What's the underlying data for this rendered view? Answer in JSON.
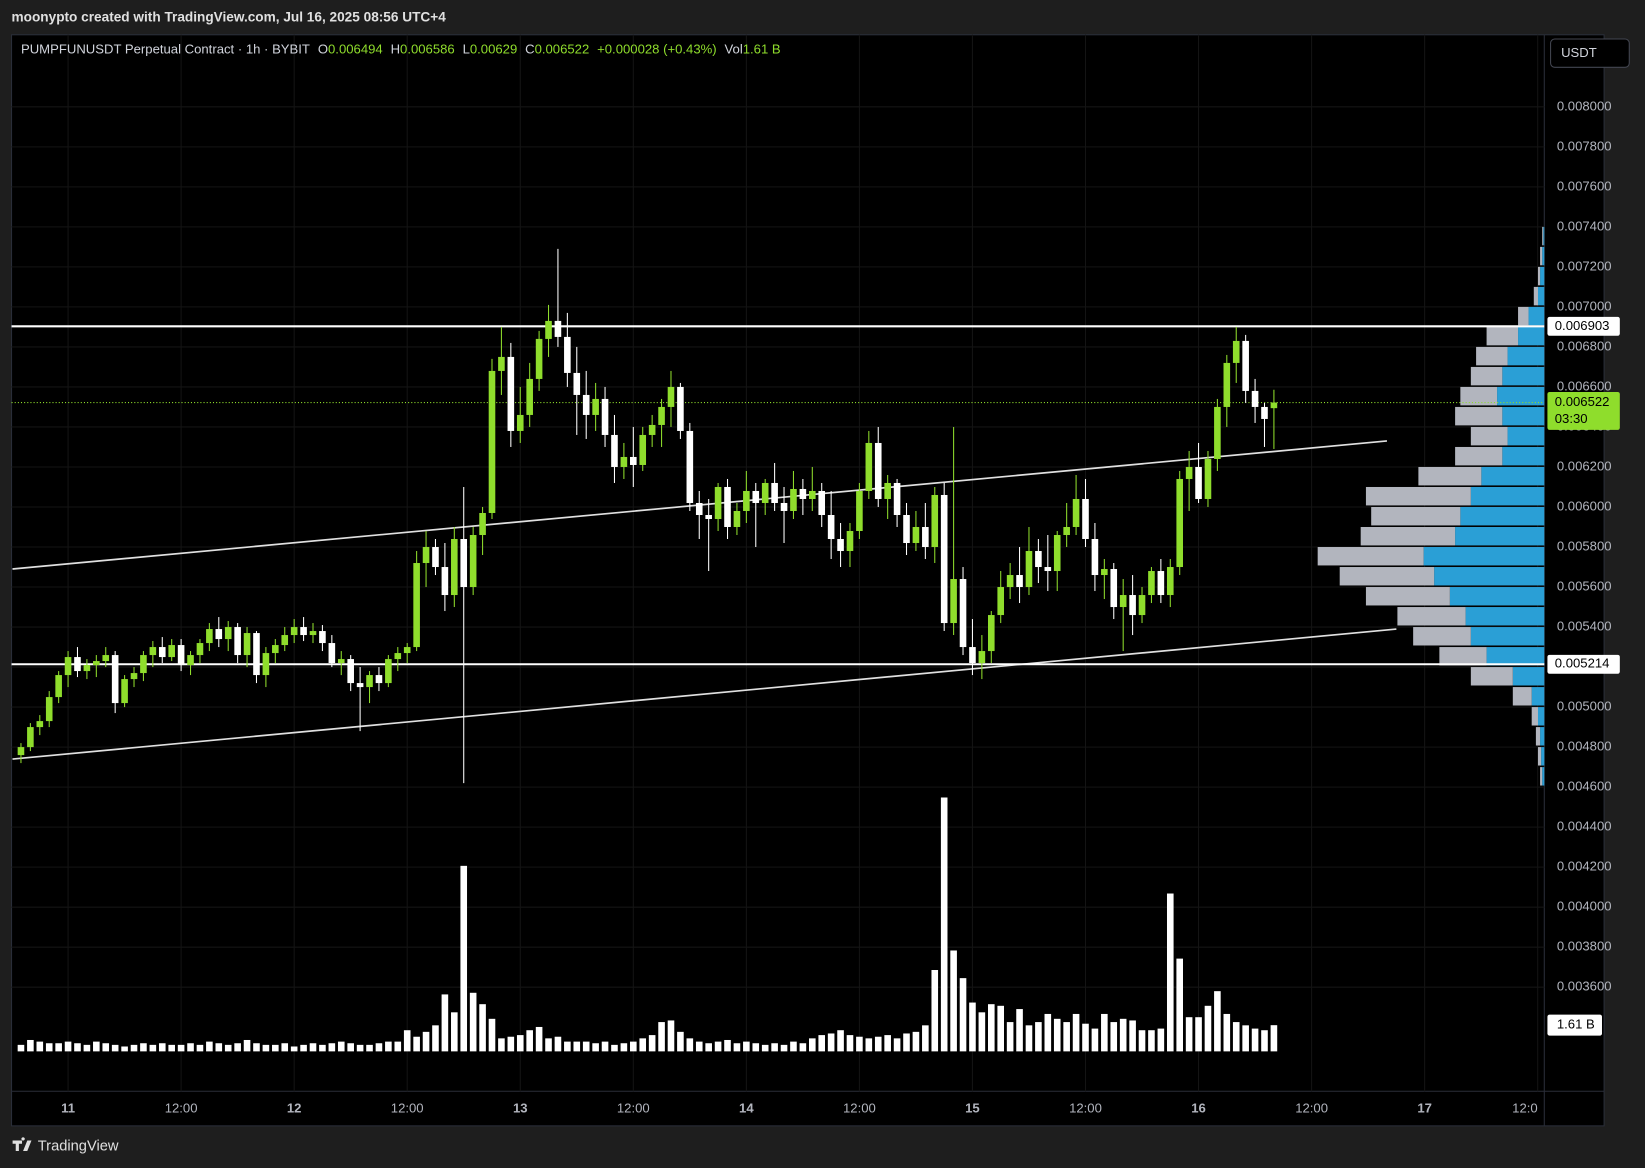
{
  "page": {
    "author_line": "moonypto created with TradingView.com, Jul 16, 2025 08:56 UTC+4",
    "currency_button": "USDT",
    "brand": "TradingView"
  },
  "chart_data": {
    "type": "candlestick",
    "legend": {
      "symbol": "PUMPFUNUSDT Perpetual Contract · 1h · BYBIT",
      "o": "O",
      "h": "H",
      "l": "L",
      "c": "C",
      "change": "+0.000028 (+0.43%)",
      "vol": "Vol"
    },
    "up_color": "#8fdd2c",
    "down_color": "#ffffff",
    "xlim": [
      -1,
      161.7
    ],
    "xticks": [
      {
        "value": 5,
        "label": "11"
      },
      {
        "value": 17,
        "label": "12:00"
      },
      {
        "value": 29,
        "label": "12"
      },
      {
        "value": 41,
        "label": "12:00"
      },
      {
        "value": 53,
        "label": "13"
      },
      {
        "value": 65,
        "label": "12:00"
      },
      {
        "value": 77,
        "label": "14"
      },
      {
        "value": 89,
        "label": "12:00"
      },
      {
        "value": 101,
        "label": "15"
      },
      {
        "value": 113,
        "label": "12:00"
      },
      {
        "value": 125,
        "label": "16"
      },
      {
        "value": 137,
        "label": "12:00"
      },
      {
        "value": 149,
        "label": "17"
      },
      {
        "value": 161,
        "label": "12:0"
      }
    ],
    "ylim": [
      0.00308,
      0.00836
    ],
    "yticks": [
      {
        "value": 0.0036,
        "label": "0.003600"
      },
      {
        "value": 0.0038,
        "label": "0.003800"
      },
      {
        "value": 0.004,
        "label": "0.004000"
      },
      {
        "value": 0.0042,
        "label": "0.004200"
      },
      {
        "value": 0.0044,
        "label": "0.004400"
      },
      {
        "value": 0.0046,
        "label": "0.004600"
      },
      {
        "value": 0.0048,
        "label": "0.004800"
      },
      {
        "value": 0.005,
        "label": "0.005000"
      },
      {
        "value": 0.0052,
        "label": "0.005200"
      },
      {
        "value": 0.0054,
        "label": "0.005400"
      },
      {
        "value": 0.0056,
        "label": "0.005600"
      },
      {
        "value": 0.0058,
        "label": "0.005800"
      },
      {
        "value": 0.006,
        "label": "0.006000"
      },
      {
        "value": 0.0062,
        "label": "0.006200"
      },
      {
        "value": 0.0064,
        "label": "0.006400"
      },
      {
        "value": 0.0066,
        "label": "0.006600"
      },
      {
        "value": 0.0068,
        "label": "0.006800"
      },
      {
        "value": 0.007,
        "label": "0.007000"
      },
      {
        "value": 0.0072,
        "label": "0.007200"
      },
      {
        "value": 0.0074,
        "label": "0.007400"
      },
      {
        "value": 0.0076,
        "label": "0.007600"
      },
      {
        "value": 0.0078,
        "label": "0.007800"
      },
      {
        "value": 0.008,
        "label": "0.008000"
      }
    ],
    "grid": true,
    "candles": [
      [
        0.00476,
        0.00482,
        0.00472,
        0.0048
      ],
      [
        0.0048,
        0.00492,
        0.00478,
        0.0049
      ],
      [
        0.0049,
        0.00496,
        0.00486,
        0.00493
      ],
      [
        0.00493,
        0.00508,
        0.0049,
        0.00505
      ],
      [
        0.00505,
        0.00518,
        0.00502,
        0.00516
      ],
      [
        0.00516,
        0.00528,
        0.0051,
        0.00525
      ],
      [
        0.00525,
        0.0053,
        0.00515,
        0.00518
      ],
      [
        0.00518,
        0.00524,
        0.00514,
        0.00521
      ],
      [
        0.00521,
        0.00526,
        0.00515,
        0.00523
      ],
      [
        0.00523,
        0.0053,
        0.0052,
        0.00526
      ],
      [
        0.00526,
        0.00528,
        0.00497,
        0.00502
      ],
      [
        0.00502,
        0.00516,
        0.005,
        0.00514
      ],
      [
        0.00514,
        0.0052,
        0.0051,
        0.00517
      ],
      [
        0.00517,
        0.00528,
        0.00513,
        0.00526
      ],
      [
        0.00526,
        0.00533,
        0.0052,
        0.0053
      ],
      [
        0.0053,
        0.00535,
        0.00522,
        0.00525
      ],
      [
        0.00525,
        0.00534,
        0.00523,
        0.00531
      ],
      [
        0.00531,
        0.00534,
        0.00518,
        0.00521
      ],
      [
        0.00521,
        0.00528,
        0.00516,
        0.00526
      ],
      [
        0.00526,
        0.00534,
        0.00522,
        0.00532
      ],
      [
        0.00532,
        0.00542,
        0.00528,
        0.00539
      ],
      [
        0.00539,
        0.00545,
        0.0053,
        0.00534
      ],
      [
        0.00534,
        0.00543,
        0.00528,
        0.0054
      ],
      [
        0.0054,
        0.00542,
        0.00522,
        0.00526
      ],
      [
        0.00526,
        0.0054,
        0.0052,
        0.00537
      ],
      [
        0.00537,
        0.00538,
        0.00512,
        0.00516
      ],
      [
        0.00516,
        0.0053,
        0.0051,
        0.00527
      ],
      [
        0.00527,
        0.00534,
        0.00522,
        0.00531
      ],
      [
        0.00531,
        0.0054,
        0.00528,
        0.00536
      ],
      [
        0.00536,
        0.00544,
        0.00532,
        0.0054
      ],
      [
        0.0054,
        0.00545,
        0.00533,
        0.00536
      ],
      [
        0.00536,
        0.00542,
        0.00532,
        0.00538
      ],
      [
        0.00538,
        0.00541,
        0.00528,
        0.00532
      ],
      [
        0.00532,
        0.00536,
        0.0052,
        0.00522
      ],
      [
        0.00522,
        0.00528,
        0.00516,
        0.00524
      ],
      [
        0.00524,
        0.00526,
        0.00508,
        0.00512
      ],
      [
        0.00512,
        0.0052,
        0.00488,
        0.0051
      ],
      [
        0.0051,
        0.00518,
        0.00502,
        0.00516
      ],
      [
        0.00516,
        0.0052,
        0.00508,
        0.00512
      ],
      [
        0.00512,
        0.00526,
        0.0051,
        0.00524
      ],
      [
        0.00524,
        0.0053,
        0.00518,
        0.00527
      ],
      [
        0.00527,
        0.00532,
        0.00522,
        0.0053
      ],
      [
        0.0053,
        0.00578,
        0.00528,
        0.00572
      ],
      [
        0.00572,
        0.00588,
        0.0056,
        0.0058
      ],
      [
        0.0058,
        0.00584,
        0.00566,
        0.0057
      ],
      [
        0.0057,
        0.00582,
        0.00548,
        0.00556
      ],
      [
        0.00556,
        0.0059,
        0.0055,
        0.00584
      ],
      [
        0.00584,
        0.0061,
        0.00462,
        0.0056
      ],
      [
        0.0056,
        0.0059,
        0.00556,
        0.00586
      ],
      [
        0.00586,
        0.006,
        0.00576,
        0.00597
      ],
      [
        0.00597,
        0.00674,
        0.00594,
        0.00668
      ],
      [
        0.00668,
        0.0069,
        0.00656,
        0.00675
      ],
      [
        0.00675,
        0.00682,
        0.0063,
        0.00638
      ],
      [
        0.00638,
        0.0066,
        0.00632,
        0.00646
      ],
      [
        0.00646,
        0.00672,
        0.0064,
        0.00664
      ],
      [
        0.00664,
        0.00688,
        0.00658,
        0.00684
      ],
      [
        0.00684,
        0.00701,
        0.00675,
        0.00693
      ],
      [
        0.00693,
        0.00729,
        0.0068,
        0.00685
      ],
      [
        0.00685,
        0.00697,
        0.0066,
        0.00667
      ],
      [
        0.00667,
        0.0068,
        0.00636,
        0.00656
      ],
      [
        0.00656,
        0.00668,
        0.00634,
        0.00646
      ],
      [
        0.00646,
        0.00662,
        0.00638,
        0.00654
      ],
      [
        0.00654,
        0.0066,
        0.0063,
        0.00636
      ],
      [
        0.00636,
        0.00646,
        0.00612,
        0.0062
      ],
      [
        0.0062,
        0.00632,
        0.00614,
        0.00625
      ],
      [
        0.00625,
        0.0064,
        0.0061,
        0.00621
      ],
      [
        0.00621,
        0.0064,
        0.00618,
        0.00636
      ],
      [
        0.00636,
        0.00646,
        0.0063,
        0.00641
      ],
      [
        0.00641,
        0.00654,
        0.0063,
        0.0065
      ],
      [
        0.0065,
        0.00668,
        0.0064,
        0.0066
      ],
      [
        0.0066,
        0.00662,
        0.00634,
        0.00638
      ],
      [
        0.00638,
        0.00642,
        0.00598,
        0.00602
      ],
      [
        0.00602,
        0.00608,
        0.00584,
        0.00596
      ],
      [
        0.00596,
        0.00604,
        0.00568,
        0.00594
      ],
      [
        0.00594,
        0.00612,
        0.00588,
        0.0061
      ],
      [
        0.0061,
        0.00614,
        0.00584,
        0.0059
      ],
      [
        0.0059,
        0.00602,
        0.00586,
        0.00598
      ],
      [
        0.00598,
        0.00618,
        0.00592,
        0.00608
      ],
      [
        0.00608,
        0.00612,
        0.0058,
        0.00602
      ],
      [
        0.00602,
        0.00614,
        0.00596,
        0.00612
      ],
      [
        0.00612,
        0.00622,
        0.00598,
        0.00602
      ],
      [
        0.00602,
        0.0061,
        0.00582,
        0.00598
      ],
      [
        0.00598,
        0.00618,
        0.00594,
        0.00609
      ],
      [
        0.00609,
        0.00614,
        0.00596,
        0.00604
      ],
      [
        0.00604,
        0.0062,
        0.00598,
        0.00608
      ],
      [
        0.00608,
        0.00612,
        0.0059,
        0.00596
      ],
      [
        0.00596,
        0.00608,
        0.00574,
        0.00584
      ],
      [
        0.00584,
        0.00592,
        0.0057,
        0.00578
      ],
      [
        0.00578,
        0.00592,
        0.0057,
        0.00588
      ],
      [
        0.00588,
        0.00612,
        0.00584,
        0.00608
      ],
      [
        0.00608,
        0.00638,
        0.00604,
        0.00632
      ],
      [
        0.00632,
        0.0064,
        0.006,
        0.00604
      ],
      [
        0.00604,
        0.00616,
        0.00594,
        0.00612
      ],
      [
        0.00612,
        0.00614,
        0.0059,
        0.00596
      ],
      [
        0.00596,
        0.00602,
        0.00576,
        0.00582
      ],
      [
        0.00582,
        0.00598,
        0.00578,
        0.0059
      ],
      [
        0.0059,
        0.00602,
        0.00574,
        0.0058
      ],
      [
        0.0058,
        0.0061,
        0.00572,
        0.00606
      ],
      [
        0.00606,
        0.00612,
        0.00538,
        0.00542
      ],
      [
        0.00542,
        0.0064,
        0.00536,
        0.00564
      ],
      [
        0.00564,
        0.0057,
        0.00526,
        0.0053
      ],
      [
        0.0053,
        0.00544,
        0.00516,
        0.00522
      ],
      [
        0.00522,
        0.00536,
        0.00514,
        0.00528
      ],
      [
        0.00528,
        0.00548,
        0.00522,
        0.00546
      ],
      [
        0.00546,
        0.00568,
        0.00542,
        0.0056
      ],
      [
        0.0056,
        0.00572,
        0.00554,
        0.00566
      ],
      [
        0.00566,
        0.0058,
        0.00552,
        0.0056
      ],
      [
        0.0056,
        0.0059,
        0.00556,
        0.00578
      ],
      [
        0.00578,
        0.00584,
        0.00562,
        0.0057
      ],
      [
        0.0057,
        0.00586,
        0.00558,
        0.00568
      ],
      [
        0.00568,
        0.00588,
        0.00558,
        0.00586
      ],
      [
        0.00586,
        0.00602,
        0.0058,
        0.0059
      ],
      [
        0.0059,
        0.00616,
        0.00586,
        0.00604
      ],
      [
        0.00604,
        0.00614,
        0.0058,
        0.00584
      ],
      [
        0.00584,
        0.00592,
        0.00558,
        0.00566
      ],
      [
        0.00566,
        0.00574,
        0.00554,
        0.00569
      ],
      [
        0.00569,
        0.00572,
        0.00544,
        0.0055
      ],
      [
        0.0055,
        0.00564,
        0.00528,
        0.00556
      ],
      [
        0.00556,
        0.00566,
        0.00536,
        0.00546
      ],
      [
        0.00546,
        0.0056,
        0.00542,
        0.00556
      ],
      [
        0.00556,
        0.0057,
        0.00552,
        0.00568
      ],
      [
        0.00568,
        0.00574,
        0.00552,
        0.00556
      ],
      [
        0.00556,
        0.00574,
        0.0055,
        0.0057
      ],
      [
        0.0057,
        0.00618,
        0.00566,
        0.00614
      ],
      [
        0.00614,
        0.00628,
        0.00598,
        0.0062
      ],
      [
        0.0062,
        0.00632,
        0.00602,
        0.00604
      ],
      [
        0.00604,
        0.00628,
        0.006,
        0.00624
      ],
      [
        0.00624,
        0.00654,
        0.00618,
        0.0065
      ],
      [
        0.0065,
        0.00676,
        0.0064,
        0.00672
      ],
      [
        0.00672,
        0.0069,
        0.00662,
        0.00683
      ],
      [
        0.00683,
        0.00686,
        0.00652,
        0.00658
      ],
      [
        0.00658,
        0.00664,
        0.00642,
        0.0065
      ],
      [
        0.0065,
        0.00652,
        0.0063,
        0.00644
      ],
      [
        0.006494,
        0.006586,
        0.00629,
        0.006522
      ]
    ],
    "volume": {
      "color": "#ffffff",
      "last_value_label": "1.61 B",
      "values": [
        0.4,
        0.7,
        0.6,
        0.5,
        0.5,
        0.6,
        0.5,
        0.4,
        0.6,
        0.5,
        0.4,
        0.3,
        0.4,
        0.5,
        0.4,
        0.5,
        0.4,
        0.4,
        0.5,
        0.4,
        0.6,
        0.5,
        0.4,
        0.5,
        0.7,
        0.5,
        0.4,
        0.4,
        0.5,
        0.3,
        0.4,
        0.5,
        0.4,
        0.5,
        0.6,
        0.5,
        0.4,
        0.4,
        0.5,
        0.6,
        0.6,
        1.3,
        0.9,
        1.2,
        1.6,
        3.5,
        2.4,
        11.4,
        3.6,
        2.9,
        2.0,
        0.8,
        0.9,
        1.0,
        1.3,
        1.5,
        0.8,
        0.9,
        0.6,
        0.6,
        0.6,
        0.5,
        0.6,
        0.4,
        0.5,
        0.6,
        0.8,
        1.0,
        1.8,
        1.9,
        1.2,
        0.8,
        0.6,
        0.5,
        0.6,
        0.7,
        0.5,
        0.6,
        0.5,
        0.4,
        0.5,
        0.4,
        0.6,
        0.5,
        0.8,
        1.0,
        1.1,
        1.3,
        1.0,
        0.9,
        0.8,
        0.9,
        1.0,
        0.8,
        1.1,
        1.2,
        1.6,
        5.0,
        15.6,
        6.2,
        4.5,
        3.0,
        2.4,
        2.9,
        2.8,
        1.8,
        2.6,
        1.6,
        1.8,
        2.3,
        2.0,
        1.8,
        2.3,
        1.7,
        1.4,
        2.3,
        1.8,
        2.0,
        1.9,
        1.3,
        1.3,
        1.4,
        9.7,
        5.7,
        2.1,
        2.1,
        2.8,
        3.7,
        2.3,
        1.8,
        1.6,
        1.4,
        1.3,
        1.61
      ]
    },
    "horizontal_lines": [
      0.006903,
      0.005214
    ],
    "trendlines": [
      {
        "x": [
          -0.9,
          145
        ],
        "y": [
          0.00569,
          0.00633
        ]
      },
      {
        "x": [
          -0.9,
          146
        ],
        "y": [
          0.00474,
          0.00539
        ]
      }
    ],
    "countdown": "03:30",
    "volume_profile": {
      "inner_color": "#2a9fd6",
      "outer_color": "#b2b5be",
      "prices": [
        0.0046,
        0.0047,
        0.0048,
        0.0049,
        0.005,
        0.0051,
        0.0052,
        0.0053,
        0.0054,
        0.0055,
        0.0056,
        0.0057,
        0.0058,
        0.0059,
        0.006,
        0.0061,
        0.0062,
        0.0063,
        0.0064,
        0.0065,
        0.0066,
        0.0067,
        0.0068,
        0.0069,
        0.007,
        0.0071,
        0.0072,
        0.0073
      ],
      "inner_values": [
        2,
        3,
        4,
        6,
        12,
        30,
        55,
        70,
        75,
        90,
        105,
        115,
        85,
        80,
        70,
        60,
        40,
        35,
        40,
        45,
        40,
        35,
        25,
        15,
        6,
        4,
        2,
        1
      ],
      "outer_values": [
        2,
        3,
        4,
        6,
        18,
        40,
        45,
        55,
        65,
        80,
        90,
        101,
        90,
        85,
        100,
        60,
        45,
        35,
        45,
        35,
        30,
        30,
        30,
        10,
        4,
        2,
        2,
        1
      ]
    }
  }
}
